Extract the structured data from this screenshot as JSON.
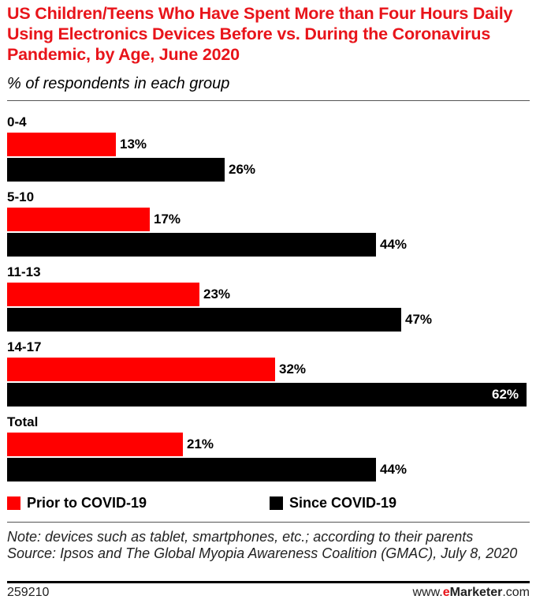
{
  "chart_data": {
    "type": "bar",
    "title": "US Children/Teens Who Have Spent More than Four Hours Daily Using Electronics Devices Before vs. During the Coronavirus Pandemic, by Age, June 2020",
    "subtitle": "% of respondents in each group",
    "categories": [
      "0-4",
      "5-10",
      "11-13",
      "14-17",
      "Total"
    ],
    "series": [
      {
        "name": "Prior to COVID-19",
        "color": "#ff0000",
        "values": [
          13,
          17,
          23,
          32,
          21
        ]
      },
      {
        "name": "Since COVID-19",
        "color": "#000000",
        "values": [
          26,
          44,
          47,
          62,
          44
        ]
      }
    ],
    "unit": "%",
    "xlim": [
      0,
      62
    ],
    "legend": "bottom"
  },
  "note": "Note: devices such as tablet, smartphones, etc.; according to their parents",
  "source": "Source: Ipsos and The Global Myopia Awareness Coalition (GMAC), July 8, 2020",
  "chart_id": "259210",
  "brand": {
    "prefix": "www.",
    "accent": "e",
    "name": "Marketer",
    "suffix": ".com"
  }
}
